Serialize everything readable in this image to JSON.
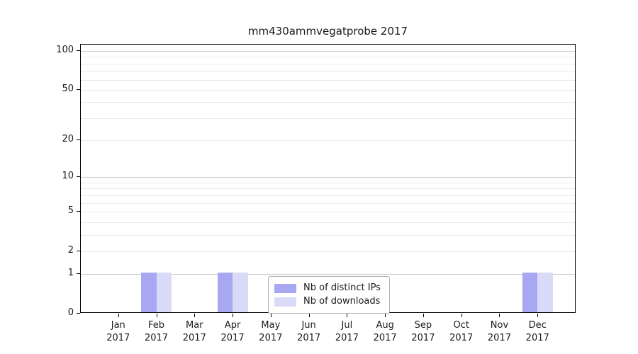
{
  "chart_data": {
    "type": "bar",
    "title": "mm430ammvegatprobe 2017",
    "categories": [
      "Jan",
      "Feb",
      "Mar",
      "Apr",
      "May",
      "Jun",
      "Jul",
      "Aug",
      "Sep",
      "Oct",
      "Nov",
      "Dec"
    ],
    "category_sublabel": "2017",
    "series": [
      {
        "name": "Nb of distinct IPs",
        "color": "#a8a8f2",
        "values": [
          0,
          1,
          0,
          1,
          0,
          0,
          0,
          0,
          0,
          0,
          0,
          1
        ]
      },
      {
        "name": "Nb of downloads",
        "color": "#d9d9f8",
        "values": [
          0,
          1,
          0,
          1,
          0,
          0,
          0,
          0,
          0,
          0,
          0,
          1
        ]
      }
    ],
    "xlabel": "",
    "ylabel": "",
    "yscale": "log1p",
    "ylim": [
      0,
      100
    ],
    "yticks": [
      0,
      1,
      2,
      5,
      10,
      20,
      50,
      100
    ],
    "grid": {
      "major": [
        1,
        10,
        100
      ],
      "minor": [
        2,
        3,
        4,
        5,
        6,
        7,
        8,
        9,
        20,
        30,
        40,
        50,
        60,
        70,
        80,
        90
      ],
      "major_color": "#cccccc",
      "minor_color": "#e9e9e9"
    },
    "legend_position": "inside-bottom-center",
    "colors": {
      "background": "#ffffff",
      "axis": "#000000",
      "text": "#1a1a1a"
    }
  }
}
